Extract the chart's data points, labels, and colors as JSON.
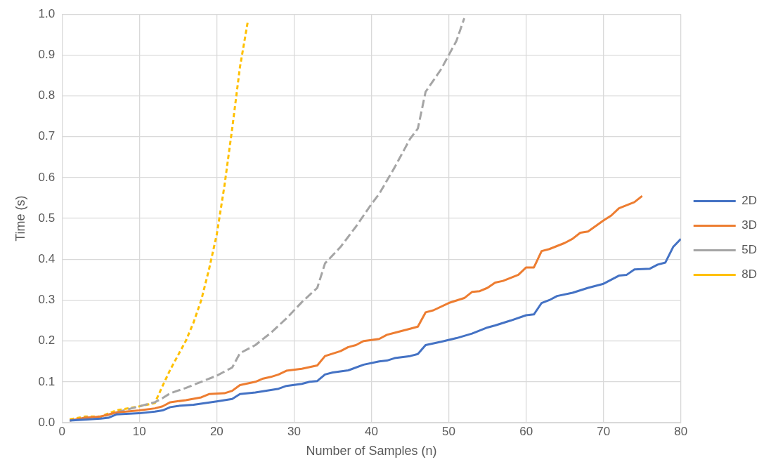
{
  "chart_data": {
    "type": "line",
    "xlabel": "Number of Samples (n)",
    "ylabel": "Time (s)",
    "xlim": [
      0,
      80
    ],
    "xticks": [
      0,
      10,
      20,
      30,
      40,
      50,
      60,
      70,
      80
    ],
    "ylim": [
      0,
      1
    ],
    "yticks": [
      {
        "value": 0,
        "label": "0.0"
      },
      {
        "value": 0.1,
        "label": "0.1"
      },
      {
        "value": 0.2,
        "label": "0.2"
      },
      {
        "value": 0.3,
        "label": "0.3"
      },
      {
        "value": 0.4,
        "label": "0.4"
      },
      {
        "value": 0.5,
        "label": "0.5"
      },
      {
        "value": 0.6,
        "label": "0.6"
      },
      {
        "value": 0.7,
        "label": "0.7"
      },
      {
        "value": 0.8,
        "label": "0.8"
      },
      {
        "value": 0.9,
        "label": "0.9"
      },
      {
        "value": 1,
        "label": "1.0"
      }
    ],
    "grid": true,
    "legend": "right",
    "marker": "none",
    "series": [
      {
        "name": "2D",
        "color": "#4472c4",
        "line_style": "solid",
        "x": [
          1,
          5,
          6,
          7,
          10,
          12,
          13,
          14,
          15,
          17,
          20,
          22,
          23,
          25,
          27,
          28,
          29,
          31,
          32,
          33,
          34,
          35,
          37,
          39,
          41,
          42,
          43,
          45,
          46,
          47,
          49,
          51,
          53,
          55,
          56,
          58,
          60,
          61,
          62,
          63,
          64,
          66,
          68,
          70,
          72,
          73,
          74,
          76,
          77,
          78,
          79,
          80
        ],
        "values": [
          0.005,
          0.01,
          0.012,
          0.02,
          0.023,
          0.027,
          0.03,
          0.038,
          0.041,
          0.044,
          0.052,
          0.058,
          0.07,
          0.074,
          0.08,
          0.083,
          0.09,
          0.095,
          0.1,
          0.102,
          0.118,
          0.123,
          0.128,
          0.142,
          0.15,
          0.152,
          0.158,
          0.163,
          0.168,
          0.19,
          0.198,
          0.207,
          0.218,
          0.233,
          0.238,
          0.25,
          0.263,
          0.265,
          0.293,
          0.3,
          0.31,
          0.318,
          0.33,
          0.34,
          0.36,
          0.362,
          0.375,
          0.377,
          0.387,
          0.392,
          0.43,
          0.45
        ]
      },
      {
        "name": "3D",
        "color": "#ed7d31",
        "line_style": "solid",
        "x": [
          1,
          3,
          5,
          7,
          10,
          12,
          13,
          14,
          16,
          18,
          19,
          21,
          22,
          23,
          25,
          26,
          27,
          28,
          29,
          31,
          33,
          34,
          36,
          37,
          38,
          39,
          41,
          42,
          43,
          45,
          46,
          47,
          48,
          50,
          52,
          53,
          54,
          55,
          56,
          57,
          59,
          60,
          61,
          62,
          63,
          65,
          66,
          67,
          68,
          70,
          71,
          72,
          74,
          75
        ],
        "values": [
          0.005,
          0.012,
          0.015,
          0.025,
          0.03,
          0.035,
          0.04,
          0.05,
          0.055,
          0.062,
          0.07,
          0.072,
          0.078,
          0.092,
          0.1,
          0.108,
          0.112,
          0.118,
          0.127,
          0.132,
          0.14,
          0.163,
          0.175,
          0.185,
          0.19,
          0.2,
          0.205,
          0.215,
          0.22,
          0.23,
          0.235,
          0.27,
          0.275,
          0.293,
          0.305,
          0.32,
          0.322,
          0.33,
          0.343,
          0.347,
          0.362,
          0.38,
          0.38,
          0.42,
          0.425,
          0.44,
          0.45,
          0.465,
          0.468,
          0.495,
          0.507,
          0.525,
          0.54,
          0.555
        ]
      },
      {
        "name": "5D",
        "color": "#a5a5a5",
        "line_style": "dashed",
        "x": [
          1,
          3,
          5,
          7,
          10,
          12,
          13,
          14,
          16,
          18,
          20,
          22,
          23,
          25,
          27,
          29,
          31,
          33,
          34,
          36,
          38,
          40,
          41,
          43,
          45,
          46,
          47,
          49,
          51,
          52
        ],
        "values": [
          0.005,
          0.012,
          0.013,
          0.025,
          0.04,
          0.05,
          0.06,
          0.072,
          0.085,
          0.1,
          0.115,
          0.135,
          0.17,
          0.19,
          0.22,
          0.255,
          0.295,
          0.33,
          0.39,
          0.43,
          0.48,
          0.535,
          0.56,
          0.625,
          0.695,
          0.72,
          0.81,
          0.865,
          0.935,
          0.99
        ]
      },
      {
        "name": "8D",
        "color": "#ffc000",
        "line_style": "dotted",
        "x": [
          1,
          3,
          5,
          7,
          10,
          12,
          13,
          14,
          15,
          16,
          17,
          18,
          19,
          20,
          21,
          22,
          23,
          24
        ],
        "values": [
          0.008,
          0.015,
          0.015,
          0.03,
          0.04,
          0.048,
          0.09,
          0.13,
          0.165,
          0.2,
          0.245,
          0.3,
          0.375,
          0.46,
          0.58,
          0.72,
          0.87,
          0.98
        ]
      }
    ]
  }
}
